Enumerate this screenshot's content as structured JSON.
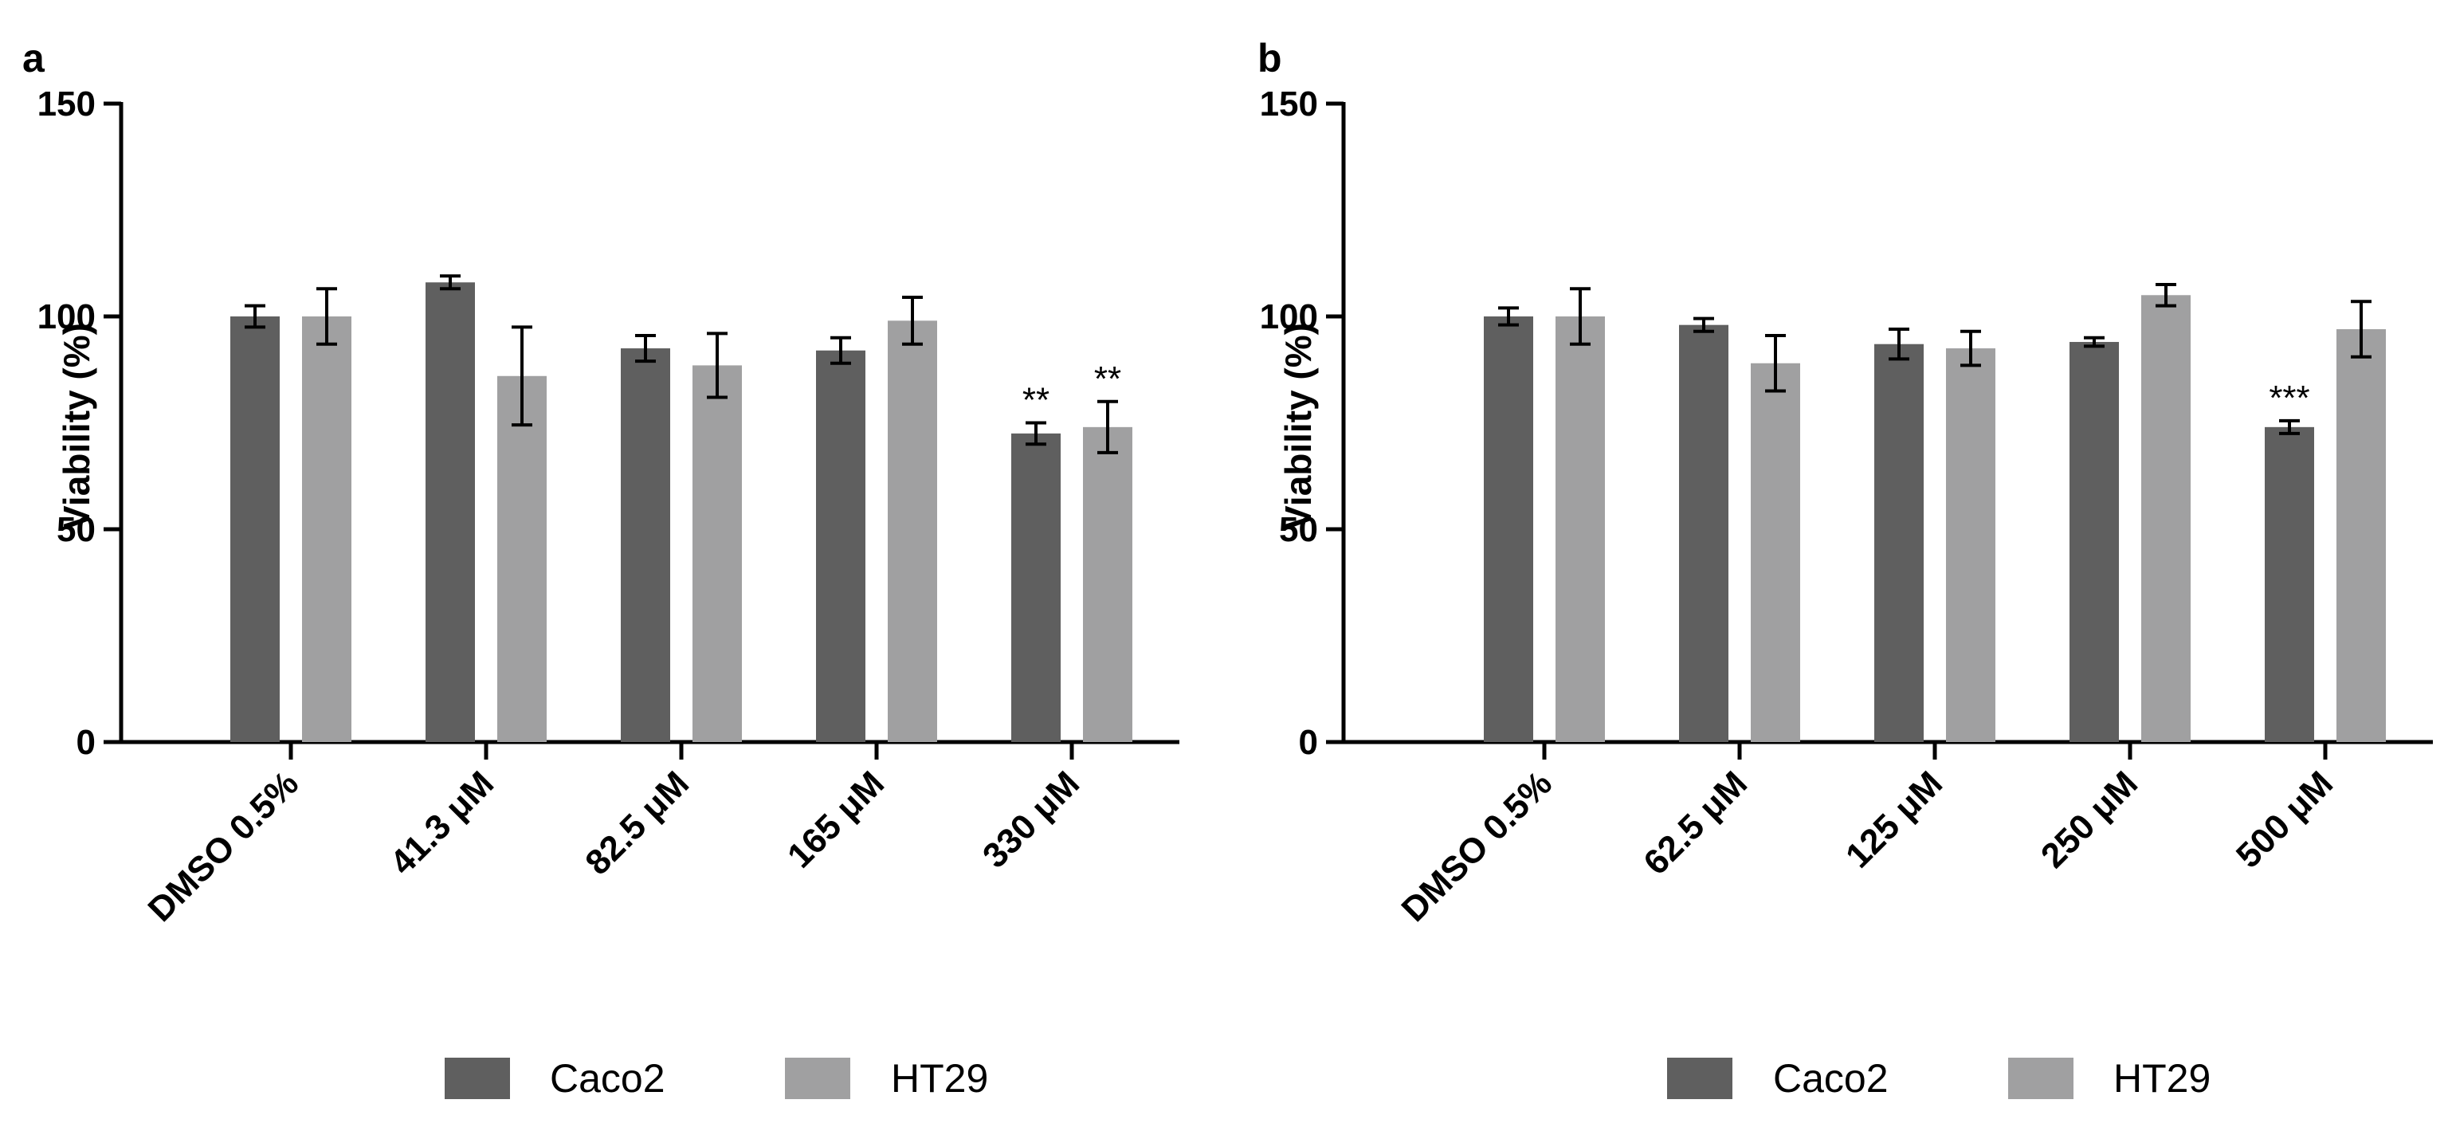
{
  "colors": {
    "Caco2": "#5f5f5f",
    "HT29": "#a0a0a1",
    "axis": "#000000"
  },
  "chart_data": [
    {
      "type": "bar",
      "panel": "a",
      "title": "",
      "ylabel": "Viability (%)",
      "xlabel": "",
      "ylim": [
        0,
        150
      ],
      "yticks": [
        0,
        50,
        100,
        150
      ],
      "categories": [
        "DMSO 0.5%",
        "41.3 μM",
        "82.5 μM",
        "165 μM",
        "330 μM"
      ],
      "series": [
        {
          "name": "Caco2",
          "values": [
            100,
            108,
            92.5,
            92,
            72.5
          ],
          "errors": [
            2.5,
            1.5,
            3,
            3,
            2.5
          ]
        },
        {
          "name": "HT29",
          "values": [
            100,
            86,
            88.5,
            99,
            74
          ],
          "errors": [
            6.5,
            11.5,
            7.5,
            5.5,
            6
          ]
        }
      ],
      "annotations": [
        {
          "series": "Caco2",
          "category": "330 μM",
          "text": "**"
        },
        {
          "series": "HT29",
          "category": "330 μM",
          "text": "**"
        }
      ],
      "legend": [
        "Caco2",
        "HT29"
      ],
      "legend_position": "bottom"
    },
    {
      "type": "bar",
      "panel": "b",
      "title": "",
      "ylabel": "Viability (%)",
      "xlabel": "",
      "ylim": [
        0,
        150
      ],
      "yticks": [
        0,
        50,
        100,
        150
      ],
      "categories": [
        "DMSO 0.5%",
        "62.5 μM",
        "125 μM",
        "250 μM",
        "500 μM"
      ],
      "series": [
        {
          "name": "Caco2",
          "values": [
            100,
            98,
            93.5,
            94,
            74
          ],
          "errors": [
            2,
            1.5,
            3.5,
            1,
            1.5
          ]
        },
        {
          "name": "HT29",
          "values": [
            100,
            89,
            92.5,
            105,
            97
          ],
          "errors": [
            6.5,
            6.5,
            4,
            2.5,
            6.5
          ]
        }
      ],
      "annotations": [
        {
          "series": "Caco2",
          "category": "500 μM",
          "text": "***"
        }
      ],
      "legend": [
        "Caco2",
        "HT29"
      ],
      "legend_position": "bottom"
    }
  ]
}
